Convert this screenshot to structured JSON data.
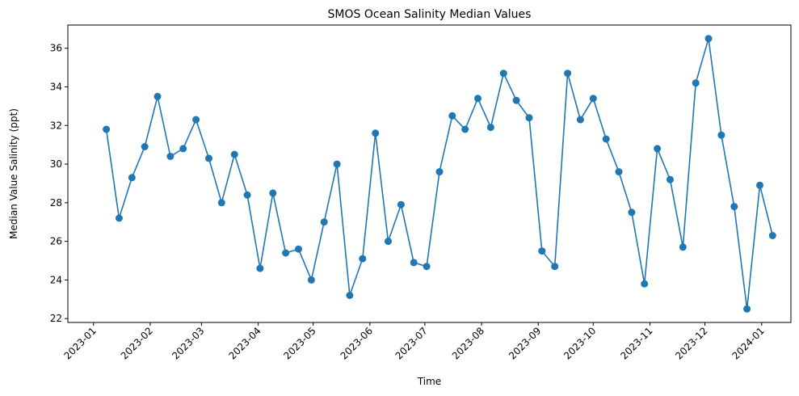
{
  "chart_data": {
    "type": "line",
    "title": "SMOS Ocean Salinity Median Values",
    "xlabel": "Time",
    "ylabel": "Median Value Salinity (ppt)",
    "xlim": [
      "2022-12-18",
      "2024-01-17"
    ],
    "ylim": [
      21.8,
      37.2
    ],
    "x_ticks": [
      "2023-01-01",
      "2023-02-01",
      "2023-03-01",
      "2023-04-01",
      "2023-05-01",
      "2023-06-01",
      "2023-07-01",
      "2023-08-01",
      "2023-09-01",
      "2023-10-01",
      "2023-11-01",
      "2023-12-01",
      "2024-01-01"
    ],
    "y_ticks": [
      22,
      24,
      26,
      28,
      30,
      32,
      34,
      36
    ],
    "grid": false,
    "marker": "circle",
    "color": "#1f77b4",
    "series": [
      {
        "x": [
          "2023-01-08",
          "2023-01-15",
          "2023-01-22",
          "2023-01-29",
          "2023-02-05",
          "2023-02-12",
          "2023-02-19",
          "2023-02-26",
          "2023-03-05",
          "2023-03-12",
          "2023-03-19",
          "2023-03-26",
          "2023-04-02",
          "2023-04-09",
          "2023-04-16",
          "2023-04-23",
          "2023-04-30",
          "2023-05-07",
          "2023-05-14",
          "2023-05-21",
          "2023-05-28",
          "2023-06-04",
          "2023-06-11",
          "2023-06-18",
          "2023-06-25",
          "2023-07-02",
          "2023-07-09",
          "2023-07-16",
          "2023-07-23",
          "2023-07-30",
          "2023-08-06",
          "2023-08-13",
          "2023-08-20",
          "2023-08-27",
          "2023-09-03",
          "2023-09-10",
          "2023-09-17",
          "2023-09-24",
          "2023-10-01",
          "2023-10-08",
          "2023-10-15",
          "2023-10-22",
          "2023-10-29",
          "2023-11-05",
          "2023-11-12",
          "2023-11-19",
          "2023-11-26",
          "2023-12-03",
          "2023-12-10",
          "2023-12-17",
          "2023-12-24",
          "2023-12-31",
          "2024-01-07"
        ],
        "values": [
          31.8,
          27.2,
          29.3,
          30.9,
          33.5,
          30.4,
          30.8,
          32.3,
          30.3,
          28.0,
          30.5,
          28.4,
          24.6,
          28.5,
          25.4,
          25.6,
          24.0,
          27.0,
          30.0,
          23.2,
          25.1,
          31.6,
          26.0,
          27.9,
          24.9,
          24.7,
          29.6,
          32.5,
          31.8,
          33.4,
          31.9,
          34.7,
          33.3,
          32.4,
          25.5,
          24.7,
          34.7,
          32.3,
          33.4,
          31.3,
          29.6,
          27.5,
          23.8,
          30.8,
          29.2,
          25.7,
          34.2,
          36.5,
          31.5,
          27.8,
          22.5,
          28.9,
          26.3
        ]
      }
    ]
  }
}
